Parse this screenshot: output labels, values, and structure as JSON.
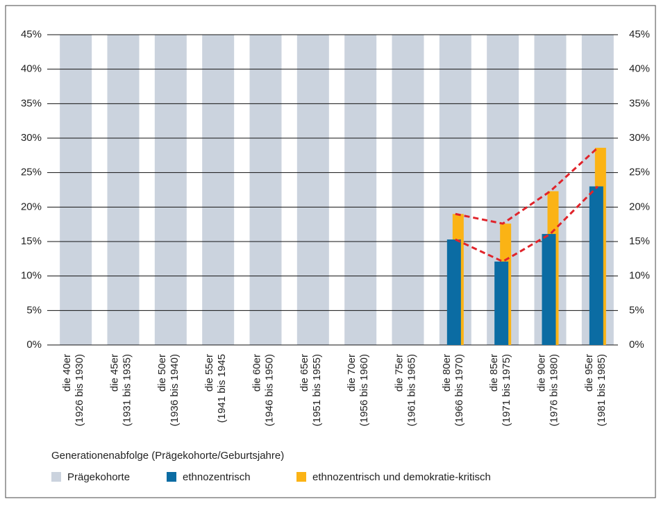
{
  "chart_data": {
    "type": "bar",
    "xlabel": "Generationenabfolge (Prägekohorte/Geburtsjahre)",
    "categories": [
      [
        "die 40er",
        "(1926 bis 1930)"
      ],
      [
        "die 45er",
        "(1931 bis 1935)"
      ],
      [
        "die 50er",
        "(1936 bis 1940)"
      ],
      [
        "die 55er",
        "(1941 bis 1945"
      ],
      [
        "die 60er",
        "(1946 bis 1950)"
      ],
      [
        "die 65er",
        "(1951 bis 1955)"
      ],
      [
        "die 70er",
        "(1956 bis 1960)"
      ],
      [
        "die 75er",
        "(1961 bis 1965)"
      ],
      [
        "die 80er",
        "(1966 bis 1970)"
      ],
      [
        "die 85er",
        "(1971 bis 1975)"
      ],
      [
        "die 90er",
        "(1976 bis 1980)"
      ],
      [
        "die 95er",
        "(1981 bis 1985)"
      ]
    ],
    "series": [
      {
        "name": "Prägekohorte",
        "color": "#cbd3de",
        "values": [
          45,
          45,
          45,
          45,
          45,
          45,
          45,
          45,
          45,
          45,
          45,
          45
        ]
      },
      {
        "name": "ethnozentrisch",
        "color": "#0b6ca3",
        "values": [
          null,
          null,
          null,
          null,
          null,
          null,
          null,
          null,
          15.3,
          12.1,
          16.1,
          23.0
        ]
      },
      {
        "name": "ethnozentrisch und demokratie-kritisch",
        "color": "#fbb315",
        "values": [
          null,
          null,
          null,
          null,
          null,
          null,
          null,
          null,
          19.0,
          17.6,
          22.3,
          28.6
        ]
      }
    ],
    "trend_color": "#e0242b",
    "ylim": [
      0,
      45
    ],
    "yticks": [
      {
        "value": 0,
        "label": "0%"
      },
      {
        "value": 5,
        "label": "5%"
      },
      {
        "value": 10,
        "label": "10%"
      },
      {
        "value": 15,
        "label": "15%"
      },
      {
        "value": 20,
        "label": "20%"
      },
      {
        "value": 25,
        "label": "25%"
      },
      {
        "value": 30,
        "label": "30%"
      },
      {
        "value": 35,
        "label": "35%"
      },
      {
        "value": 40,
        "label": "40%"
      },
      {
        "value": 45,
        "label": "45%"
      }
    ],
    "grid": true
  }
}
